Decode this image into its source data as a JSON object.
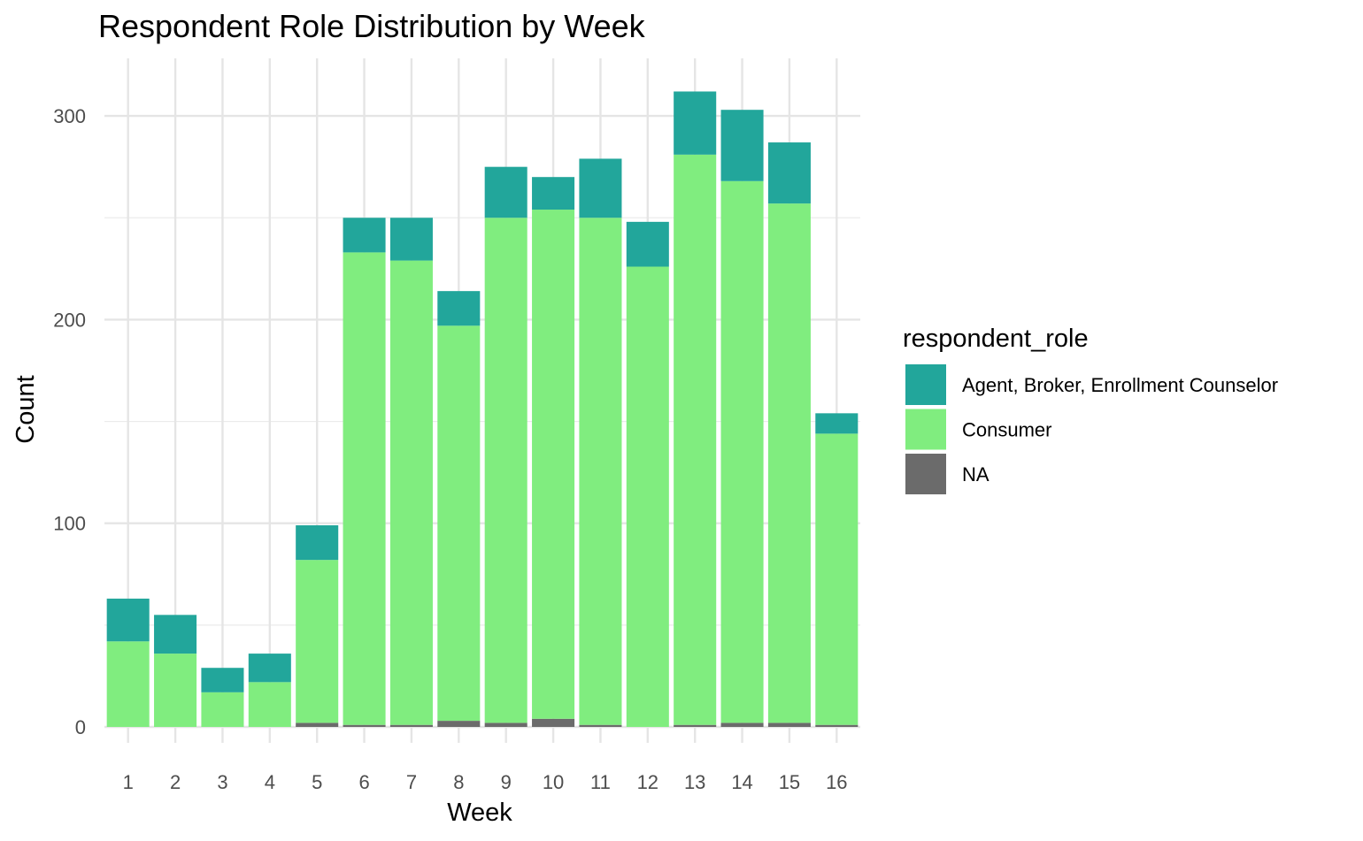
{
  "chart_data": {
    "type": "bar",
    "stacked": true,
    "title": "Respondent Role Distribution by Week",
    "xlabel": "Week",
    "ylabel": "Count",
    "ylim": [
      0,
      330
    ],
    "yticks": [
      0,
      100,
      200,
      300
    ],
    "grid": true,
    "legend": {
      "title": "respondent_role",
      "position": "right"
    },
    "categories": [
      "1",
      "2",
      "3",
      "4",
      "5",
      "6",
      "7",
      "8",
      "9",
      "10",
      "11",
      "12",
      "13",
      "14",
      "15",
      "16"
    ],
    "series": [
      {
        "name": "NA",
        "color": "#6b6b6b",
        "values": [
          0,
          0,
          0,
          0,
          2,
          1,
          1,
          3,
          2,
          4,
          1,
          0,
          1,
          2,
          2,
          1
        ]
      },
      {
        "name": "Consumer",
        "color": "#80ed7f",
        "values": [
          42,
          36,
          17,
          22,
          80,
          232,
          228,
          194,
          248,
          250,
          249,
          226,
          280,
          266,
          255,
          143
        ]
      },
      {
        "name": "Agent, Broker, Enrollment Counselor",
        "color": "#22a69b",
        "values": [
          21,
          19,
          12,
          14,
          17,
          17,
          21,
          17,
          25,
          16,
          29,
          22,
          31,
          35,
          30,
          10
        ]
      }
    ],
    "legend_order": [
      "Agent, Broker, Enrollment Counselor",
      "Consumer",
      "NA"
    ]
  }
}
